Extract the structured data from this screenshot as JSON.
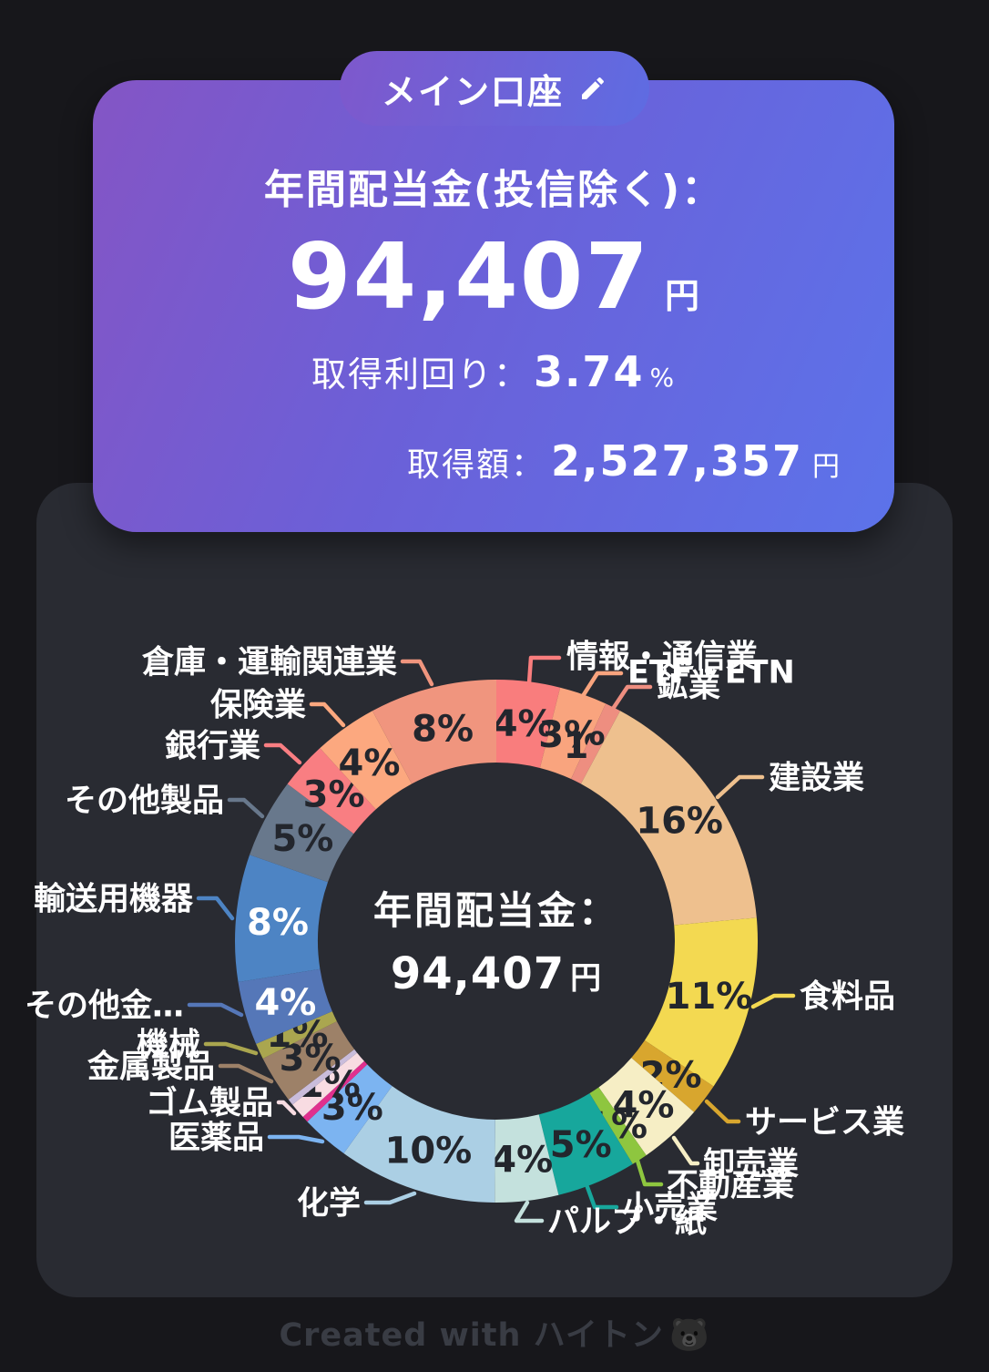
{
  "account_card": {
    "pill_label": "メイン口座",
    "title": "年間配当金(投信除く)：",
    "amount": "94,407",
    "amount_unit": "円",
    "yield_label": "取得利回り：",
    "yield_value": "3.74",
    "yield_unit": "%",
    "acquisition_label": "取得額：",
    "acquisition_value": "2,527,357",
    "acquisition_unit": "円"
  },
  "chart_card": {
    "center_title": "年間配当金：",
    "center_value": "94,407",
    "center_unit": "円"
  },
  "watermark": {
    "text": "Created with ハイトン",
    "emoji": "🐻"
  },
  "colors": {
    "page_bg": "#17171b",
    "chart_card_bg": "#292b32",
    "card_gradient": [
      "#8455c5",
      "#6b60d8",
      "#5c73ea"
    ],
    "pill_gradient": [
      "#7e58cc",
      "#5e6ce2"
    ],
    "watermark_text": "#393c44",
    "percent_label_dark": "#23262d",
    "percent_label_light": "#ffffff"
  },
  "chart_data": {
    "type": "pie",
    "donut": true,
    "title": "年間配当金：94,407円",
    "start_angle_deg": 0,
    "direction": "clockwise",
    "legend_position": "outside-callouts",
    "slices": [
      {
        "label": "情報・通信業",
        "percent": 4,
        "color": "#f97d7d"
      },
      {
        "label": "ETF・ETN",
        "percent": 3,
        "color": "#f9a47e"
      },
      {
        "label": "鉱業",
        "percent": 1,
        "color": "#ee8e80"
      },
      {
        "label": "建設業",
        "percent": 16,
        "color": "#eec08e"
      },
      {
        "label": "食料品",
        "percent": 11,
        "color": "#f3d951"
      },
      {
        "label": "サービス業",
        "percent": 2,
        "color": "#d8a62e"
      },
      {
        "label": "卸売業",
        "percent": 4,
        "color": "#f6eec5"
      },
      {
        "label": "不動産業",
        "percent": 1,
        "color": "#8ec63f"
      },
      {
        "label": "小売業",
        "percent": 5,
        "color": "#17a79c"
      },
      {
        "label": "パルプ・紙",
        "percent": 4,
        "color": "#c4e1dd"
      },
      {
        "label": "化学",
        "percent": 10,
        "color": "#abcfe4"
      },
      {
        "label": "医薬品",
        "percent": 3,
        "color": "#7cb4f1"
      },
      {
        "label": "",
        "percent": 0.4,
        "color": "#e0308e"
      },
      {
        "label": "ゴム製品",
        "percent": 1,
        "color": "#f8dce2"
      },
      {
        "label": "",
        "percent": 0.4,
        "color": "#c9bcdb"
      },
      {
        "label": "金属製品",
        "percent": 3,
        "color": "#9d8168"
      },
      {
        "label": "機械",
        "percent": 1,
        "color": "#aaa64f"
      },
      {
        "label": "その他金…",
        "percent": 4,
        "color": "#5577b8"
      },
      {
        "label": "輸送用機器",
        "percent": 8,
        "color": "#4d84c4"
      },
      {
        "label": "その他製品",
        "percent": 5,
        "color": "#68788c"
      },
      {
        "label": "銀行業",
        "percent": 3,
        "color": "#f97e82"
      },
      {
        "label": "保険業",
        "percent": 4,
        "color": "#fca87f"
      },
      {
        "label": "倉庫・運輸関連業",
        "percent": 8,
        "color": "#f0957e"
      }
    ]
  }
}
